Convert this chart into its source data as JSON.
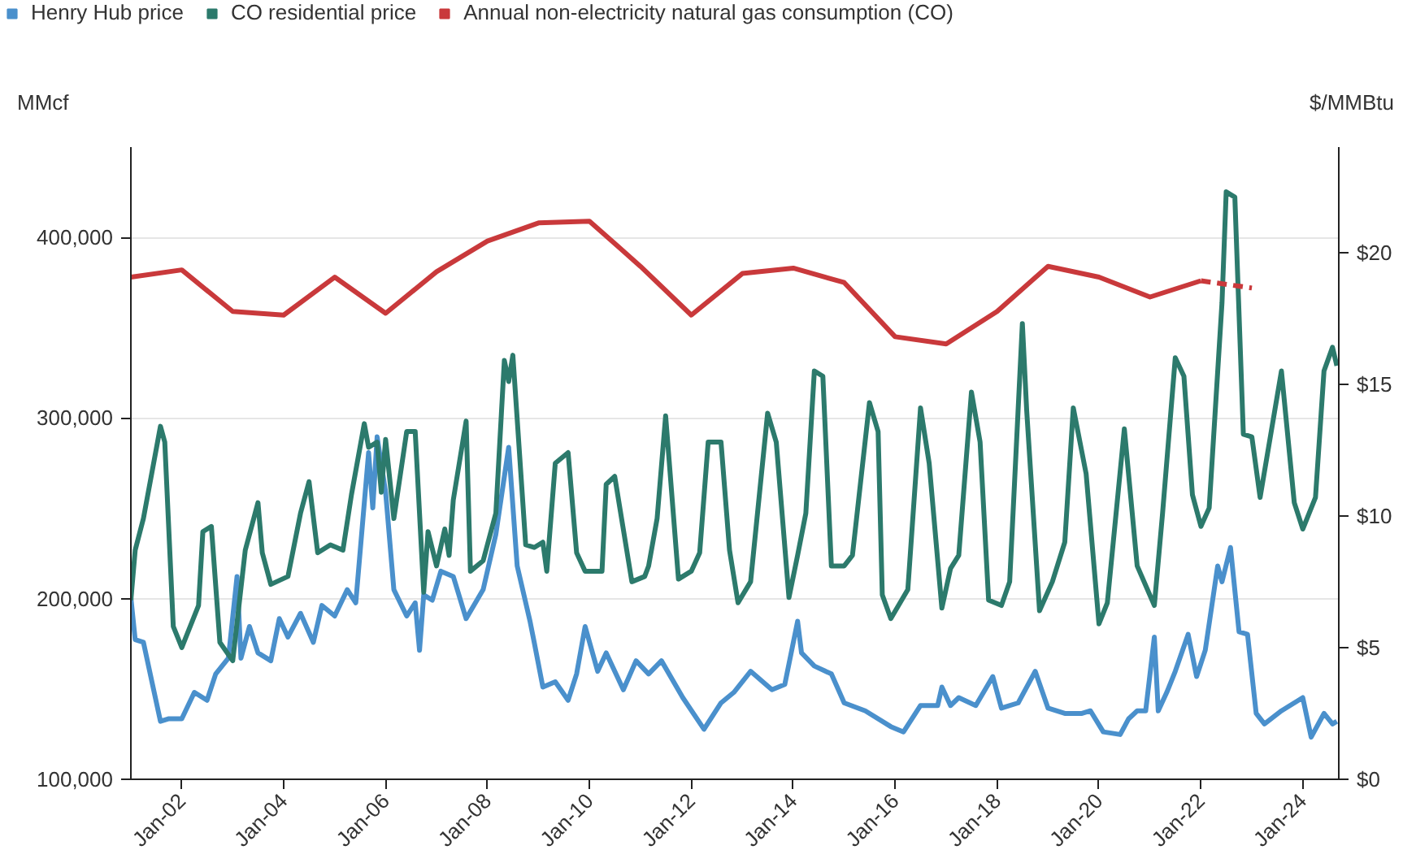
{
  "chart_data": {
    "type": "line",
    "legend": "top left",
    "grid": "y",
    "ylabel": "MMcf",
    "y2label": "$/MMBtu",
    "xlim": [
      "2001-01-01",
      "2024-09-15"
    ],
    "xticks": [
      {
        "value": "2002-01-01",
        "label": "Jan-02"
      },
      {
        "value": "2004-01-01",
        "label": "Jan-04"
      },
      {
        "value": "2006-01-01",
        "label": "Jan-06"
      },
      {
        "value": "2008-01-01",
        "label": "Jan-08"
      },
      {
        "value": "2010-01-01",
        "label": "Jan-10"
      },
      {
        "value": "2012-01-01",
        "label": "Jan-12"
      },
      {
        "value": "2014-01-01",
        "label": "Jan-14"
      },
      {
        "value": "2016-01-01",
        "label": "Jan-16"
      },
      {
        "value": "2018-01-01",
        "label": "Jan-18"
      },
      {
        "value": "2020-01-01",
        "label": "Jan-20"
      },
      {
        "value": "2022-01-01",
        "label": "Jan-22"
      },
      {
        "value": "2024-01-01",
        "label": "Jan-24"
      }
    ],
    "ylim": [
      100000,
      450000
    ],
    "yticks": [
      {
        "value": 100000,
        "label": "100,000"
      },
      {
        "value": 200000,
        "label": "200,000"
      },
      {
        "value": 300000,
        "label": "300,000"
      },
      {
        "value": 400000,
        "label": "400,000"
      }
    ],
    "y2lim": [
      0,
      24
    ],
    "y2ticks": [
      {
        "value": 0,
        "label": "$0"
      },
      {
        "value": 5,
        "label": "$5"
      },
      {
        "value": 10,
        "label": "$10"
      },
      {
        "value": 15,
        "label": "$15"
      },
      {
        "value": 20,
        "label": "$20"
      }
    ],
    "series": [
      {
        "name": "Henry Hub price",
        "color": "#4a90cc",
        "axis": "y2",
        "x": [
          "2001-01",
          "2001-02",
          "2001-04",
          "2001-06",
          "2001-08",
          "2001-10",
          "2002-01",
          "2002-04",
          "2002-07",
          "2002-09",
          "2002-12",
          "2003-02",
          "2003-03",
          "2003-05",
          "2003-07",
          "2003-10",
          "2003-12",
          "2004-02",
          "2004-05",
          "2004-08",
          "2004-10",
          "2005-01",
          "2005-04",
          "2005-06",
          "2005-09",
          "2005-10",
          "2005-11",
          "2006-01",
          "2006-03",
          "2006-06",
          "2006-08",
          "2006-09",
          "2006-10",
          "2006-12",
          "2007-02",
          "2007-05",
          "2007-08",
          "2007-12",
          "2008-03",
          "2008-06",
          "2008-08",
          "2008-11",
          "2008-12",
          "2009-02",
          "2009-05",
          "2009-08",
          "2009-10",
          "2009-12",
          "2010-03",
          "2010-05",
          "2010-09",
          "2010-12",
          "2011-03",
          "2011-06",
          "2011-11",
          "2012-04",
          "2012-08",
          "2012-11",
          "2013-03",
          "2013-08",
          "2013-11",
          "2014-02",
          "2014-03",
          "2014-06",
          "2014-10",
          "2015-01",
          "2015-06",
          "2015-12",
          "2016-03",
          "2016-07",
          "2016-11",
          "2016-12",
          "2017-02",
          "2017-04",
          "2017-08",
          "2017-12",
          "2018-02",
          "2018-06",
          "2018-10",
          "2019-01",
          "2019-05",
          "2019-09",
          "2019-11",
          "2020-02",
          "2020-06",
          "2020-08",
          "2020-10",
          "2020-12",
          "2021-02",
          "2021-03",
          "2021-05",
          "2021-07",
          "2021-10",
          "2021-12",
          "2022-02",
          "2022-05",
          "2022-06",
          "2022-08",
          "2022-10",
          "2022-12",
          "2023-02",
          "2023-04",
          "2023-08",
          "2023-10",
          "2024-01",
          "2024-03",
          "2024-06",
          "2024-08",
          "2024-09"
        ],
        "values": [
          6.9,
          5.3,
          5.2,
          3.7,
          2.2,
          2.3,
          2.3,
          3.3,
          3.0,
          4.0,
          4.6,
          7.7,
          4.6,
          5.8,
          4.8,
          4.5,
          6.1,
          5.4,
          6.3,
          5.2,
          6.6,
          6.2,
          7.2,
          6.7,
          12.4,
          10.3,
          13.0,
          10.9,
          7.2,
          6.2,
          6.7,
          4.9,
          7.0,
          6.8,
          7.9,
          7.7,
          6.1,
          7.2,
          9.3,
          12.6,
          8.1,
          6.0,
          5.2,
          3.5,
          3.7,
          3.0,
          4.0,
          5.8,
          4.1,
          4.8,
          3.4,
          4.5,
          4.0,
          4.5,
          3.1,
          1.9,
          2.9,
          3.3,
          4.1,
          3.4,
          3.6,
          6.0,
          4.8,
          4.3,
          4.0,
          2.9,
          2.6,
          2.0,
          1.8,
          2.8,
          2.8,
          3.5,
          2.8,
          3.1,
          2.8,
          3.9,
          2.7,
          2.9,
          4.1,
          2.7,
          2.5,
          2.5,
          2.6,
          1.8,
          1.7,
          2.3,
          2.6,
          2.6,
          5.4,
          2.6,
          3.3,
          4.1,
          5.5,
          3.9,
          4.9,
          8.1,
          7.5,
          8.8,
          5.6,
          5.5,
          2.5,
          2.1,
          2.6,
          2.8,
          3.1,
          1.6,
          2.5,
          2.1,
          2.2
        ]
      },
      {
        "name": "CO residential price",
        "color": "#2c7a6c",
        "axis": "y2",
        "x": [
          "2001-01",
          "2001-02",
          "2001-04",
          "2001-08",
          "2001-09",
          "2001-11",
          "2002-01",
          "2002-05",
          "2002-06",
          "2002-08",
          "2002-10",
          "2003-01",
          "2003-04",
          "2003-07",
          "2003-08",
          "2003-10",
          "2004-02",
          "2004-05",
          "2004-07",
          "2004-09",
          "2004-12",
          "2005-03",
          "2005-05",
          "2005-08",
          "2005-09",
          "2005-11",
          "2005-12",
          "2006-01",
          "2006-03",
          "2006-06",
          "2006-08",
          "2006-10",
          "2006-11",
          "2007-01",
          "2007-03",
          "2007-04",
          "2007-05",
          "2007-08",
          "2007-09",
          "2007-12",
          "2008-03",
          "2008-05",
          "2008-06",
          "2008-07",
          "2008-10",
          "2008-12",
          "2009-02",
          "2009-03",
          "2009-05",
          "2009-08",
          "2009-10",
          "2009-12",
          "2010-04",
          "2010-05",
          "2010-07",
          "2010-11",
          "2011-02",
          "2011-03",
          "2011-05",
          "2011-07",
          "2011-10",
          "2012-01",
          "2012-03",
          "2012-05",
          "2012-08",
          "2012-10",
          "2012-12",
          "2013-03",
          "2013-07",
          "2013-09",
          "2013-12",
          "2014-02",
          "2014-04",
          "2014-06",
          "2014-08",
          "2014-10",
          "2015-01",
          "2015-03",
          "2015-07",
          "2015-09",
          "2015-10",
          "2015-12",
          "2016-04",
          "2016-07",
          "2016-09",
          "2016-12",
          "2017-02",
          "2017-04",
          "2017-07",
          "2017-09",
          "2017-11",
          "2018-02",
          "2018-04",
          "2018-07",
          "2018-08",
          "2018-11",
          "2019-02",
          "2019-05",
          "2019-07",
          "2019-10",
          "2020-01",
          "2020-03",
          "2020-07",
          "2020-10",
          "2021-02",
          "2021-04",
          "2021-07",
          "2021-09",
          "2021-11",
          "2022-01",
          "2022-03",
          "2022-06",
          "2022-07",
          "2022-09",
          "2022-11",
          "2023-01",
          "2023-03",
          "2023-08",
          "2023-11",
          "2024-01",
          "2024-04",
          "2024-06",
          "2024-08",
          "2024-09"
        ],
        "values": [
          6.8,
          8.7,
          9.9,
          13.4,
          12.8,
          5.8,
          5.0,
          6.6,
          9.4,
          9.6,
          5.2,
          4.5,
          8.7,
          10.5,
          8.6,
          7.4,
          7.7,
          10.1,
          11.3,
          8.6,
          8.9,
          8.7,
          10.8,
          13.5,
          12.6,
          12.8,
          10.9,
          12.9,
          9.9,
          13.2,
          13.2,
          7.1,
          9.4,
          8.1,
          9.5,
          8.5,
          10.6,
          13.6,
          7.9,
          8.3,
          10.1,
          15.9,
          15.1,
          16.1,
          8.9,
          8.8,
          9.0,
          7.9,
          12.0,
          12.4,
          8.6,
          7.9,
          7.9,
          11.2,
          11.5,
          7.5,
          7.7,
          8.1,
          9.9,
          13.8,
          7.6,
          7.9,
          8.6,
          12.8,
          12.8,
          8.7,
          6.7,
          7.5,
          13.9,
          12.8,
          6.9,
          8.5,
          10.1,
          15.5,
          15.3,
          8.1,
          8.1,
          8.5,
          14.3,
          13.2,
          7.0,
          6.1,
          7.2,
          14.1,
          12.0,
          6.5,
          8.0,
          8.5,
          14.7,
          12.8,
          6.8,
          6.6,
          7.5,
          17.3,
          14.0,
          6.4,
          7.5,
          9.0,
          14.1,
          11.6,
          5.9,
          6.7,
          13.3,
          8.1,
          6.6,
          10.1,
          16.0,
          15.3,
          10.8,
          9.6,
          10.3,
          18.1,
          22.3,
          22.1,
          13.1,
          13.0,
          10.7,
          15.5,
          10.5,
          9.5,
          10.7,
          15.5,
          16.4,
          15.7
        ]
      },
      {
        "name": "Annual non-electricity natural gas consumption (CO)",
        "color": "#c9393b",
        "x": [
          "2001",
          "2002",
          "2003",
          "2004",
          "2005",
          "2006",
          "2007",
          "2008",
          "2009",
          "2010",
          "2011",
          "2012",
          "2013",
          "2014",
          "2015",
          "2016",
          "2017",
          "2018",
          "2019",
          "2020",
          "2021",
          "2022"
        ],
        "values": [
          378000,
          382000,
          359000,
          357000,
          378000,
          358000,
          381000,
          398000,
          408000,
          409000,
          384000,
          357000,
          380000,
          383000,
          375000,
          345000,
          341000,
          359000,
          384000,
          378000,
          367000,
          376000
        ]
      },
      {
        "color": "#c9393b",
        "line_style": "dashed",
        "x": [
          "2022",
          "2023"
        ],
        "values": [
          376000,
          372000
        ]
      }
    ]
  }
}
